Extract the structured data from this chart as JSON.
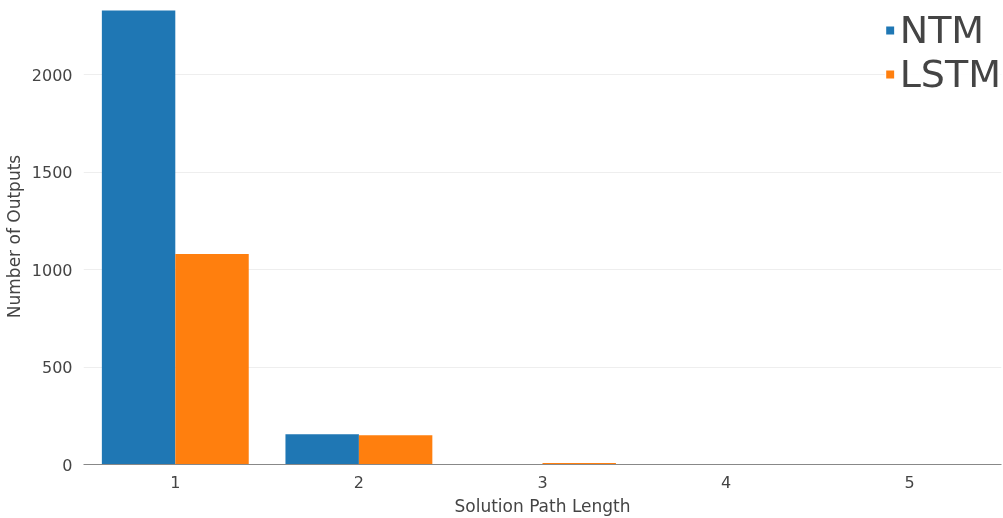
{
  "chart_data": {
    "type": "bar",
    "xlabel": "Solution Path Length",
    "ylabel": "Number of Outputs",
    "categories": [
      "1",
      "2",
      "3",
      "4",
      "5"
    ],
    "series": [
      {
        "name": "NTM",
        "color": "#1f77b4",
        "values": [
          2330,
          155,
          3,
          2,
          0
        ]
      },
      {
        "name": "LSTM",
        "color": "#ff7f0e",
        "values": [
          1080,
          150,
          8,
          0,
          0
        ]
      }
    ],
    "ylim": [
      0,
      2340
    ],
    "yticks": [
      0,
      500,
      1000,
      1500,
      2000
    ],
    "grid": "y",
    "legend": "top right"
  }
}
